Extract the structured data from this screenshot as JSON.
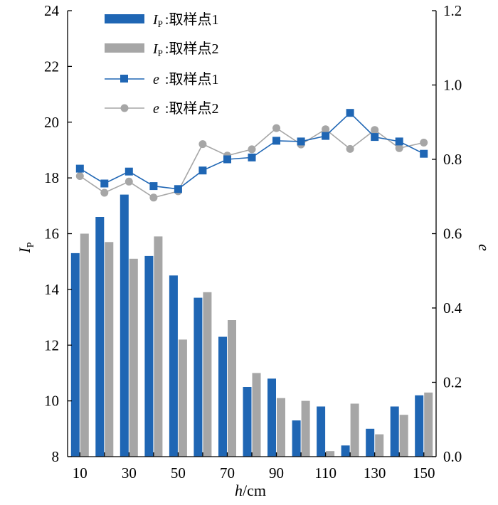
{
  "colors": {
    "site1": "#1f66b4",
    "site2": "#a6a6a6"
  },
  "chart_data": {
    "type": "bar+line",
    "x": [
      10,
      20,
      30,
      40,
      50,
      60,
      70,
      80,
      90,
      100,
      110,
      120,
      130,
      140,
      150
    ],
    "x_tick_labels": [
      "10",
      "30",
      "50",
      "70",
      "90",
      "110",
      "130",
      "150"
    ],
    "xlabel": {
      "var": "h",
      "unit": "/cm"
    },
    "ylabel_left": {
      "var": "I",
      "sub": "P"
    },
    "ylabel_right": "e",
    "ylim_left": [
      8,
      24
    ],
    "yticks_left": [
      "8",
      "10",
      "12",
      "14",
      "16",
      "18",
      "20",
      "22",
      "24"
    ],
    "ylim_right": [
      0.0,
      1.2
    ],
    "yticks_right": [
      "0.0",
      "0.2",
      "0.4",
      "0.6",
      "0.8",
      "1.0",
      "1.2"
    ],
    "bar_series": [
      {
        "name": "IP-site1",
        "values": [
          15.3,
          16.6,
          17.4,
          15.2,
          14.5,
          13.7,
          12.3,
          10.5,
          10.8,
          9.3,
          9.8,
          8.4,
          9.0,
          9.8,
          10.2
        ]
      },
      {
        "name": "IP-site2",
        "values": [
          16.0,
          15.7,
          15.1,
          15.9,
          12.2,
          13.9,
          12.9,
          11.0,
          10.1,
          10.0,
          8.2,
          9.9,
          8.8,
          9.5,
          10.3
        ]
      }
    ],
    "line_series": [
      {
        "name": "e-site1",
        "marker": "square",
        "values": [
          0.775,
          0.735,
          0.767,
          0.728,
          0.72,
          0.77,
          0.8,
          0.805,
          0.85,
          0.848,
          0.863,
          0.925,
          0.86,
          0.848,
          0.815
        ]
      },
      {
        "name": "e-site2",
        "marker": "circle",
        "values": [
          0.755,
          0.71,
          0.74,
          0.697,
          0.714,
          0.841,
          0.81,
          0.827,
          0.884,
          0.84,
          0.881,
          0.828,
          0.879,
          0.83,
          0.845
        ]
      }
    ],
    "legend": {
      "position": "top-left",
      "entries": [
        {
          "var": "I",
          "sub": "P",
          "text": ":取样点1"
        },
        {
          "var": "I",
          "sub": "P",
          "text": ":取样点2"
        },
        {
          "var": "e",
          "text": ":取样点1"
        },
        {
          "var": "e",
          "text": ":取样点2"
        }
      ]
    }
  }
}
